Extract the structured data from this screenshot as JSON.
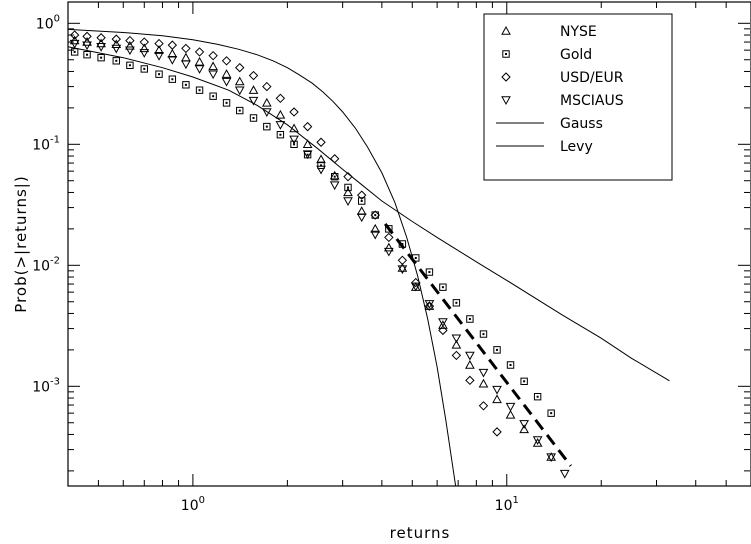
{
  "chart_data": {
    "type": "scatter",
    "title": "",
    "xlabel": "returns",
    "ylabel": "Prob(>|returns|)",
    "xscale": "log",
    "yscale": "log",
    "xlim": [
      0.4,
      60
    ],
    "ylim": [
      0.00015,
      1.5
    ],
    "grid": false,
    "legend_position": "top-right",
    "x_ticks": [
      {
        "value": 1,
        "base": "10",
        "exp": "0"
      },
      {
        "value": 10,
        "base": "10",
        "exp": "1"
      }
    ],
    "y_ticks": [
      {
        "value": 1,
        "base": "10",
        "exp": "0"
      },
      {
        "value": 0.1,
        "base": "10",
        "exp": "-1"
      },
      {
        "value": 0.01,
        "base": "10",
        "exp": "-2"
      },
      {
        "value": 0.001,
        "base": "10",
        "exp": "-3"
      }
    ],
    "series": [
      {
        "name": "NYSE",
        "marker": "triangle-up",
        "color": "#000000",
        "x": [
          0.42,
          0.46,
          0.51,
          0.57,
          0.63,
          0.7,
          0.78,
          0.86,
          0.95,
          1.05,
          1.16,
          1.28,
          1.41,
          1.56,
          1.72,
          1.9,
          2.1,
          2.32,
          2.56,
          2.83,
          3.12,
          3.45,
          3.81,
          4.21,
          4.65,
          5.13,
          5.67,
          6.26,
          6.91,
          7.63,
          8.43,
          9.31,
          10.28,
          11.36,
          12.54,
          13.85
        ],
        "y": [
          0.72,
          0.7,
          0.68,
          0.67,
          0.65,
          0.62,
          0.6,
          0.56,
          0.52,
          0.48,
          0.44,
          0.38,
          0.33,
          0.28,
          0.22,
          0.175,
          0.135,
          0.1,
          0.075,
          0.055,
          0.04,
          0.028,
          0.02,
          0.014,
          0.0095,
          0.0066,
          0.0046,
          0.0032,
          0.0022,
          0.0015,
          0.00105,
          0.00078,
          0.00058,
          0.00044,
          0.00034,
          0.00026
        ]
      },
      {
        "name": "Gold",
        "marker": "square",
        "color": "#000000",
        "x": [
          0.42,
          0.46,
          0.51,
          0.57,
          0.63,
          0.7,
          0.78,
          0.86,
          0.95,
          1.05,
          1.16,
          1.28,
          1.41,
          1.56,
          1.72,
          1.9,
          2.1,
          2.32,
          2.56,
          2.83,
          3.12,
          3.45,
          3.81,
          4.21,
          4.65,
          5.13,
          5.67,
          6.26,
          6.91,
          7.63,
          8.43,
          9.31,
          10.28,
          11.36,
          12.54,
          13.85
        ],
        "y": [
          0.58,
          0.55,
          0.52,
          0.49,
          0.45,
          0.42,
          0.38,
          0.345,
          0.31,
          0.28,
          0.25,
          0.22,
          0.19,
          0.165,
          0.14,
          0.12,
          0.1,
          0.082,
          0.067,
          0.054,
          0.044,
          0.034,
          0.026,
          0.02,
          0.015,
          0.0115,
          0.0088,
          0.0066,
          0.0049,
          0.0036,
          0.0027,
          0.002,
          0.0015,
          0.0011,
          0.00082,
          0.0006
        ]
      },
      {
        "name": "USD/EUR",
        "marker": "diamond",
        "color": "#000000",
        "x": [
          0.42,
          0.46,
          0.51,
          0.57,
          0.63,
          0.7,
          0.78,
          0.86,
          0.95,
          1.05,
          1.16,
          1.28,
          1.41,
          1.56,
          1.72,
          1.9,
          2.1,
          2.32,
          2.56,
          2.83,
          3.12,
          3.45,
          3.81,
          4.21,
          4.65,
          5.13,
          5.67,
          6.26,
          6.91,
          7.63,
          8.43,
          9.31
        ],
        "y": [
          0.8,
          0.78,
          0.76,
          0.74,
          0.72,
          0.7,
          0.68,
          0.66,
          0.62,
          0.58,
          0.54,
          0.49,
          0.43,
          0.37,
          0.3,
          0.24,
          0.185,
          0.14,
          0.104,
          0.076,
          0.054,
          0.038,
          0.026,
          0.017,
          0.011,
          0.0072,
          0.0046,
          0.0029,
          0.0018,
          0.00112,
          0.00069,
          0.00042
        ]
      },
      {
        "name": "MSCIAUS",
        "marker": "triangle-down",
        "color": "#000000",
        "x": [
          0.42,
          0.46,
          0.51,
          0.57,
          0.63,
          0.7,
          0.78,
          0.86,
          0.95,
          1.05,
          1.16,
          1.28,
          1.41,
          1.56,
          1.72,
          1.9,
          2.1,
          2.32,
          2.56,
          2.83,
          3.12,
          3.45,
          3.81,
          4.21,
          4.65,
          5.13,
          5.67,
          6.26,
          6.91,
          7.63,
          8.43,
          9.31,
          10.28,
          11.36,
          12.54,
          13.85,
          15.3
        ],
        "y": [
          0.68,
          0.66,
          0.64,
          0.62,
          0.6,
          0.57,
          0.54,
          0.5,
          0.46,
          0.42,
          0.38,
          0.33,
          0.28,
          0.23,
          0.185,
          0.145,
          0.11,
          0.083,
          0.062,
          0.046,
          0.034,
          0.025,
          0.018,
          0.013,
          0.0093,
          0.0067,
          0.0048,
          0.0034,
          0.0025,
          0.0018,
          0.0013,
          0.00094,
          0.00068,
          0.00049,
          0.00036,
          0.00026,
          0.00019
        ]
      },
      {
        "name": "Gauss",
        "style": "line",
        "color": "#000000",
        "x": [
          0.4,
          0.6,
          0.8,
          1.0,
          1.2,
          1.4,
          1.6,
          1.8,
          2.0,
          2.2,
          2.4,
          2.6,
          2.8,
          3.0,
          3.3,
          3.6,
          4.0,
          4.4,
          4.8,
          5.2,
          5.6,
          6.0,
          6.4,
          6.8,
          7.0
        ],
        "y": [
          0.89,
          0.84,
          0.79,
          0.73,
          0.67,
          0.61,
          0.55,
          0.49,
          0.43,
          0.37,
          0.32,
          0.27,
          0.225,
          0.185,
          0.135,
          0.095,
          0.058,
          0.033,
          0.017,
          0.0082,
          0.0036,
          0.00145,
          0.00052,
          0.00018,
          0.00011
        ]
      },
      {
        "name": "Levy",
        "style": "line",
        "color": "#000000",
        "x": [
          0.4,
          0.6,
          0.8,
          1.0,
          1.3,
          1.6,
          2.0,
          2.5,
          3.0,
          3.5,
          4.0,
          5.0,
          6.0,
          8.0,
          10.0,
          15.0,
          20.0,
          25.0,
          33.0
        ],
        "y": [
          0.64,
          0.52,
          0.43,
          0.36,
          0.28,
          0.21,
          0.145,
          0.092,
          0.062,
          0.045,
          0.034,
          0.023,
          0.017,
          0.0107,
          0.0075,
          0.0039,
          0.0025,
          0.0017,
          0.00111
        ]
      },
      {
        "name": "",
        "style": "dashed",
        "color": "#000000",
        "x": [
          4.1,
          16.0
        ],
        "y": [
          0.022,
          0.00022
        ]
      }
    ]
  }
}
